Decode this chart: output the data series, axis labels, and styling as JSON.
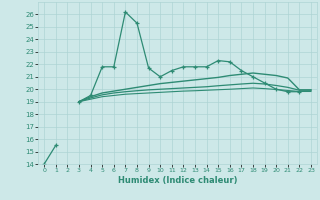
{
  "xlabel": "Humidex (Indice chaleur)",
  "x": [
    0,
    1,
    2,
    3,
    4,
    5,
    6,
    7,
    8,
    9,
    10,
    11,
    12,
    13,
    14,
    15,
    16,
    17,
    18,
    19,
    20,
    21,
    22,
    23
  ],
  "line1": [
    14.0,
    15.5,
    null,
    19.0,
    19.5,
    21.8,
    21.8,
    26.2,
    25.3,
    21.7,
    21.0,
    21.5,
    21.8,
    21.8,
    21.8,
    22.3,
    22.2,
    21.5,
    21.0,
    20.5,
    20.0,
    19.8,
    19.8,
    null
  ],
  "line2": [
    null,
    null,
    null,
    19.0,
    19.4,
    19.7,
    19.85,
    20.0,
    20.15,
    20.3,
    20.45,
    20.55,
    20.65,
    20.75,
    20.85,
    20.95,
    21.1,
    21.2,
    21.3,
    21.2,
    21.1,
    20.9,
    19.95,
    19.95
  ],
  "line3": [
    null,
    null,
    null,
    19.0,
    19.3,
    19.55,
    19.7,
    19.8,
    19.88,
    19.95,
    20.0,
    20.05,
    20.1,
    20.15,
    20.2,
    20.28,
    20.35,
    20.42,
    20.48,
    20.42,
    20.3,
    20.15,
    19.92,
    19.92
  ],
  "line4": [
    null,
    null,
    null,
    19.0,
    19.2,
    19.4,
    19.5,
    19.6,
    19.65,
    19.7,
    19.75,
    19.8,
    19.85,
    19.88,
    19.92,
    19.96,
    20.0,
    20.05,
    20.1,
    20.05,
    19.98,
    19.9,
    19.82,
    19.82
  ],
  "color": "#2e8b74",
  "bg_color": "#cde8e8",
  "grid_color": "#aed4d4",
  "ylim": [
    14,
    27
  ],
  "xlim": [
    -0.5,
    23.5
  ],
  "yticks": [
    14,
    15,
    16,
    17,
    18,
    19,
    20,
    21,
    22,
    23,
    24,
    25,
    26
  ],
  "xticks": [
    0,
    1,
    2,
    3,
    4,
    5,
    6,
    7,
    8,
    9,
    10,
    11,
    12,
    13,
    14,
    15,
    16,
    17,
    18,
    19,
    20,
    21,
    22,
    23
  ]
}
